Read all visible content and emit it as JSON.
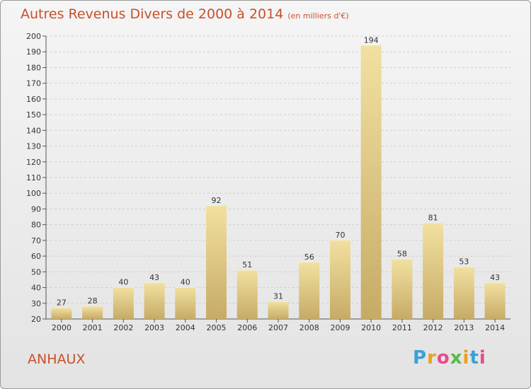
{
  "header": {
    "title": "Autres Revenus Divers de 2000 à 2014",
    "unit": "(en milliers d'€)"
  },
  "footer": {
    "commune": "ANHAUX",
    "logo_letters": [
      "P",
      "r",
      "o",
      "x",
      "i",
      "t",
      "i"
    ],
    "logo_colors": [
      "#3aa0d8",
      "#e8a020",
      "#e84a8a",
      "#5ab848",
      "#e8a020",
      "#3aa0d8",
      "#e84a8a"
    ]
  },
  "colors": {
    "title": "#c8502a",
    "bar_top": "#f2e0a0",
    "bar_bottom": "#c6ab66",
    "grid": "#cfcfcf"
  },
  "chart_data": {
    "type": "bar",
    "title": "Autres Revenus Divers de 2000 à 2014",
    "subtitle": "(en milliers d'€)",
    "categories": [
      "2000",
      "2001",
      "2002",
      "2003",
      "2004",
      "2005",
      "2006",
      "2007",
      "2008",
      "2009",
      "2010",
      "2011",
      "2012",
      "2013",
      "2014"
    ],
    "values": [
      27,
      28,
      40,
      43,
      40,
      92,
      51,
      31,
      56,
      70,
      194,
      58,
      81,
      53,
      43
    ],
    "ylim": [
      20,
      200
    ],
    "yticks": [
      20,
      30,
      40,
      50,
      60,
      70,
      80,
      90,
      100,
      110,
      120,
      130,
      140,
      150,
      160,
      170,
      180,
      190,
      200
    ],
    "grid": true,
    "xlabel": "",
    "ylabel": ""
  }
}
